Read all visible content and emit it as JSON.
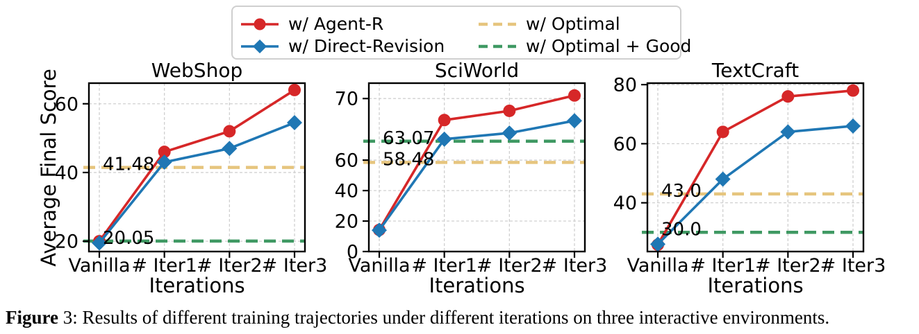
{
  "figure": {
    "caption_bold": "Figure",
    "caption_text": " 3: Results of different training trajectories under different iterations on three interactive environments."
  },
  "colors": {
    "agent_r": "#d62728",
    "direct_revision": "#1f77b4",
    "optimal": "#e6c57e",
    "optimal_good": "#3f9963",
    "grid": "#d0d0d0",
    "spine": "#000000",
    "text": "#000000",
    "legend_border": "#cfcfcf"
  },
  "legend": {
    "items": [
      {
        "label": "w/ Agent-R",
        "color_key": "agent_r",
        "marker": "circle",
        "line": "solid",
        "col": 0,
        "row": 0
      },
      {
        "label": "w/ Direct-Revision",
        "color_key": "direct_revision",
        "marker": "diamond",
        "line": "solid",
        "col": 0,
        "row": 1
      },
      {
        "label": "w/ Optimal",
        "color_key": "optimal",
        "marker": "none",
        "line": "dashed",
        "col": 1,
        "row": 0
      },
      {
        "label": "w/ Optimal + Good",
        "color_key": "optimal_good",
        "marker": "none",
        "line": "dashed",
        "col": 1,
        "row": 1
      }
    ]
  },
  "axes": {
    "xlabel": "Iterations",
    "ylabel": "Average Final Score",
    "categories": [
      "Vanilla",
      "# Iter1",
      "# Iter2",
      "# Iter3"
    ]
  },
  "chart_data": [
    {
      "type": "line",
      "title": "WebShop",
      "categories": [
        "Vanilla",
        "# Iter1",
        "# Iter2",
        "# Iter3"
      ],
      "yticks": [
        20,
        40,
        60
      ],
      "ylim": [
        17,
        66
      ],
      "scale_points": [
        [
          17,
          0
        ],
        [
          66,
          1
        ]
      ],
      "grid": true,
      "legend_position": "figure-top",
      "series": [
        {
          "name": "w/ Agent-R",
          "color_key": "agent_r",
          "marker": "circle",
          "values": [
            20,
            46,
            52,
            64
          ]
        },
        {
          "name": "w/ Direct-Revision",
          "color_key": "direct_revision",
          "marker": "diamond",
          "values": [
            19.5,
            43,
            47,
            54.5
          ]
        }
      ],
      "hlines": [
        {
          "name": "w/ Optimal",
          "value": 41.48,
          "label": "41.48",
          "color_key": "optimal"
        },
        {
          "name": "w/ Optimal + Good",
          "value": 20.05,
          "label": "20.05",
          "color_key": "optimal_good"
        }
      ]
    },
    {
      "type": "line",
      "title": "SciWorld",
      "categories": [
        "Vanilla",
        "# Iter1",
        "# Iter2",
        "# Iter3"
      ],
      "yticks": [
        0,
        20,
        40,
        60,
        70
      ],
      "ylim": [
        0,
        72.5
      ],
      "scale_points": [
        [
          0,
          0
        ],
        [
          60,
          0.543
        ],
        [
          72.5,
          1
        ]
      ],
      "grid": true,
      "series": [
        {
          "name": "w/ Agent-R",
          "color_key": "agent_r",
          "marker": "circle",
          "values": [
            14.2,
            66.5,
            68,
            70.5
          ]
        },
        {
          "name": "w/ Direct-Revision",
          "color_key": "direct_revision",
          "marker": "diamond",
          "values": [
            14,
            63.4,
            64.4,
            66.4
          ]
        }
      ],
      "hlines": [
        {
          "name": "w/ Optimal + Good",
          "value": 63.07,
          "label": "63.07",
          "color_key": "optimal_good"
        },
        {
          "name": "w/ Optimal",
          "value": 58.48,
          "label": "58.48",
          "color_key": "optimal"
        }
      ]
    },
    {
      "type": "line",
      "title": "TextCraft",
      "categories": [
        "Vanilla",
        "# Iter1",
        "# Iter2",
        "# Iter3"
      ],
      "yticks": [
        40,
        60,
        80
      ],
      "ylim": [
        23.5,
        80.5
      ],
      "scale_points": [
        [
          23.5,
          0
        ],
        [
          80.5,
          1
        ]
      ],
      "grid": true,
      "series": [
        {
          "name": "w/ Agent-R",
          "color_key": "agent_r",
          "marker": "circle",
          "values": [
            25.8,
            64,
            76,
            78
          ]
        },
        {
          "name": "w/ Direct-Revision",
          "color_key": "direct_revision",
          "marker": "diamond",
          "values": [
            26,
            48,
            64,
            66
          ]
        }
      ],
      "hlines": [
        {
          "name": "w/ Optimal",
          "value": 43.0,
          "label": "43.0",
          "color_key": "optimal"
        },
        {
          "name": "w/ Optimal + Good",
          "value": 30.0,
          "label": "30.0",
          "color_key": "optimal_good"
        }
      ]
    }
  ]
}
